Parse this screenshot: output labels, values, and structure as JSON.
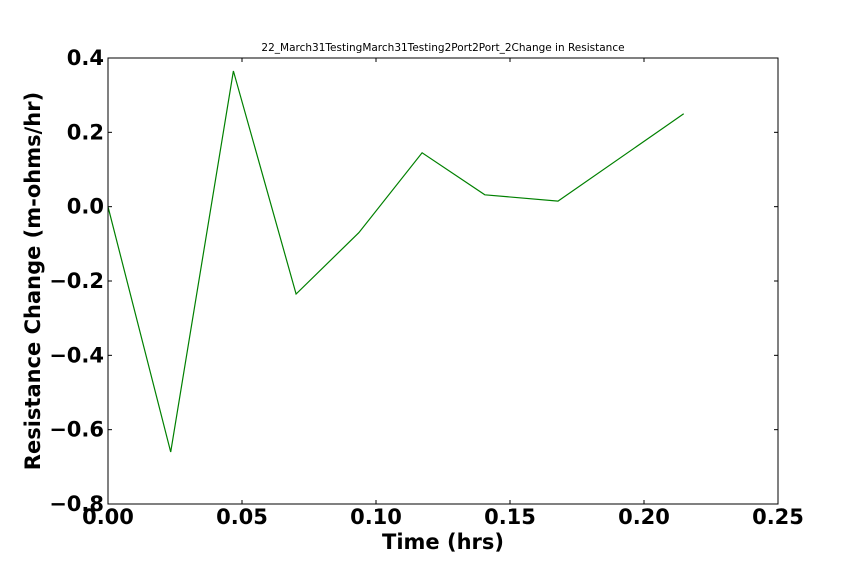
{
  "chart_data": {
    "type": "line",
    "title": "22_March31TestingMarch31Testing2Port2Port_2Change in Resistance",
    "xlabel": "Time (hrs)",
    "ylabel": "Resistance Change (m-ohms/hr)",
    "xlim": [
      0.0,
      0.25
    ],
    "ylim": [
      -0.8,
      0.4
    ],
    "xticks": [
      0.0,
      0.05,
      0.1,
      0.15,
      0.2,
      0.25
    ],
    "xtick_labels": [
      "0.00",
      "0.05",
      "0.10",
      "0.15",
      "0.20",
      "0.25"
    ],
    "yticks": [
      0.4,
      0.2,
      0.0,
      -0.2,
      -0.4,
      -0.6,
      -0.8
    ],
    "ytick_labels": [
      "0.4",
      "0.2",
      "0.0",
      "−0.2",
      "−0.4",
      "−0.6",
      "−0.8"
    ],
    "grid": false,
    "line_color": "#008000",
    "series": [
      {
        "x": [
          0.0,
          0.0234,
          0.0468,
          0.0702,
          0.0936,
          0.1172,
          0.1406,
          0.1679,
          0.2148
        ],
        "y": [
          0.0,
          -0.66,
          0.365,
          -0.235,
          -0.07,
          0.145,
          0.032,
          0.015,
          0.25
        ]
      }
    ]
  }
}
